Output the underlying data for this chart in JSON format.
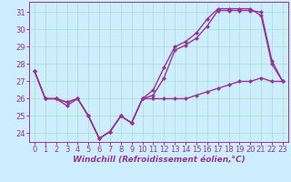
{
  "xlabel": "Windchill (Refroidissement éolien,°C)",
  "hours": [
    0,
    1,
    2,
    3,
    4,
    5,
    6,
    7,
    8,
    9,
    10,
    11,
    12,
    13,
    14,
    15,
    16,
    17,
    18,
    19,
    20,
    21,
    22,
    23
  ],
  "temp": [
    27.6,
    26.0,
    26.0,
    25.8,
    26.0,
    25.0,
    23.7,
    24.1,
    25.0,
    24.6,
    26.0,
    26.0,
    26.0,
    26.0,
    26.0,
    26.2,
    26.4,
    26.6,
    26.8,
    27.0,
    27.0,
    27.2,
    27.0,
    27.0
  ],
  "windchill": [
    27.6,
    26.0,
    26.0,
    25.8,
    26.0,
    25.0,
    23.7,
    24.1,
    25.0,
    24.6,
    26.0,
    26.2,
    27.2,
    28.8,
    29.1,
    29.5,
    30.2,
    31.1,
    31.1,
    31.1,
    31.1,
    31.0,
    28.2,
    27.0
  ],
  "ressentie": [
    27.6,
    26.0,
    26.0,
    25.6,
    26.0,
    25.0,
    23.7,
    24.1,
    25.0,
    24.6,
    26.0,
    26.5,
    27.8,
    29.0,
    29.3,
    29.8,
    30.6,
    31.2,
    31.2,
    31.2,
    31.2,
    30.8,
    28.0,
    27.0
  ],
  "ylim_min": 23.5,
  "ylim_max": 31.6,
  "yticks": [
    24,
    25,
    26,
    27,
    28,
    29,
    30,
    31
  ],
  "color": "#993399",
  "bg_color": "#cceeff",
  "grid_color": "#aaddcc",
  "line_width": 1.0,
  "marker_size": 2.5,
  "tick_fontsize": 6.0,
  "xlabel_fontsize": 6.5
}
